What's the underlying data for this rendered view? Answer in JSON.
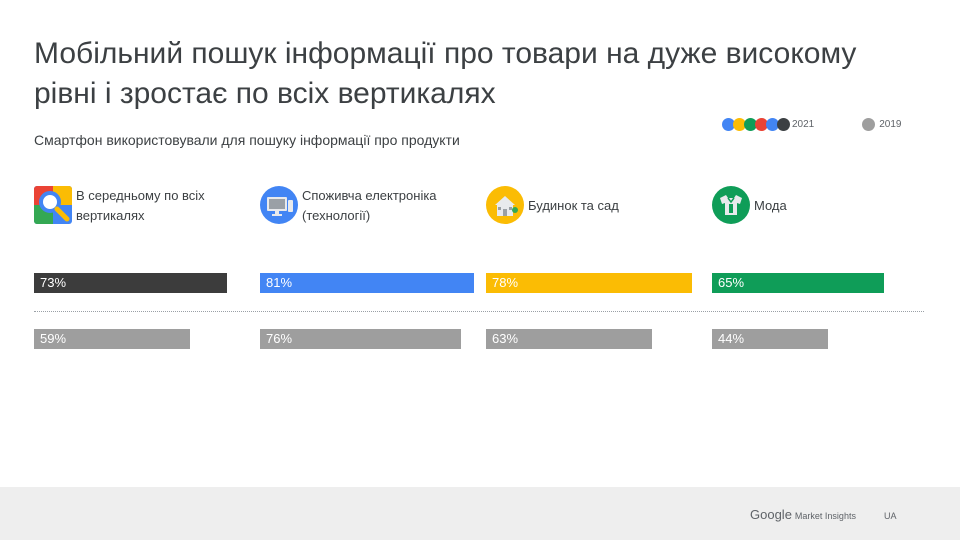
{
  "page": {
    "title_line1": "Мобільний пошук інформації про товари на дуже високому",
    "title_line2": "рівні і зростає по всіх вертикалях",
    "subtitle": "Смартфон використовували для пошуку інформації про продукти"
  },
  "legend": {
    "label_2021": "2021",
    "label_2019": "2019",
    "colors_2021": [
      "#4285f4",
      "#fbbc04",
      "#0f9d58",
      "#ea4335",
      "#4285f4",
      "#3c4043"
    ],
    "color_2019": "#9e9e9e"
  },
  "chart_data": {
    "type": "bar",
    "orientation": "horizontal",
    "value_unit": "%",
    "categories": [
      "В середньому по всіх вертикалях",
      "Споживча електроніка (технології)",
      "Будинок та сад",
      "Мода"
    ],
    "series": [
      {
        "name": "2021",
        "values": [
          73,
          81,
          78,
          65
        ],
        "labels": [
          "73%",
          "81%",
          "78%",
          "65%"
        ],
        "colors": [
          "#3c3c3c",
          "#4285f4",
          "#fbbc04",
          "#0f9d58"
        ]
      },
      {
        "name": "2019",
        "values": [
          59,
          76,
          63,
          44
        ],
        "labels": [
          "59%",
          "76%",
          "63%",
          "44%"
        ],
        "colors": [
          "#9e9e9e",
          "#9e9e9e",
          "#9e9e9e",
          "#9e9e9e"
        ]
      }
    ],
    "xlim": [
      0,
      100
    ],
    "grid": false
  },
  "categories_display": [
    {
      "line1": "В середньому по всіх",
      "line2": "вертикалях",
      "icon": "search-icon"
    },
    {
      "line1": "Споживча електроніка",
      "line2": "(технології)",
      "icon": "monitor-icon"
    },
    {
      "line1": "Будинок та сад",
      "line2": "",
      "icon": "house-icon"
    },
    {
      "line1": "Мода",
      "line2": "",
      "icon": "clothing-icon"
    }
  ],
  "footer": {
    "brand_google": "Google",
    "brand_market_insights": "Market Insights",
    "region": "UA"
  }
}
